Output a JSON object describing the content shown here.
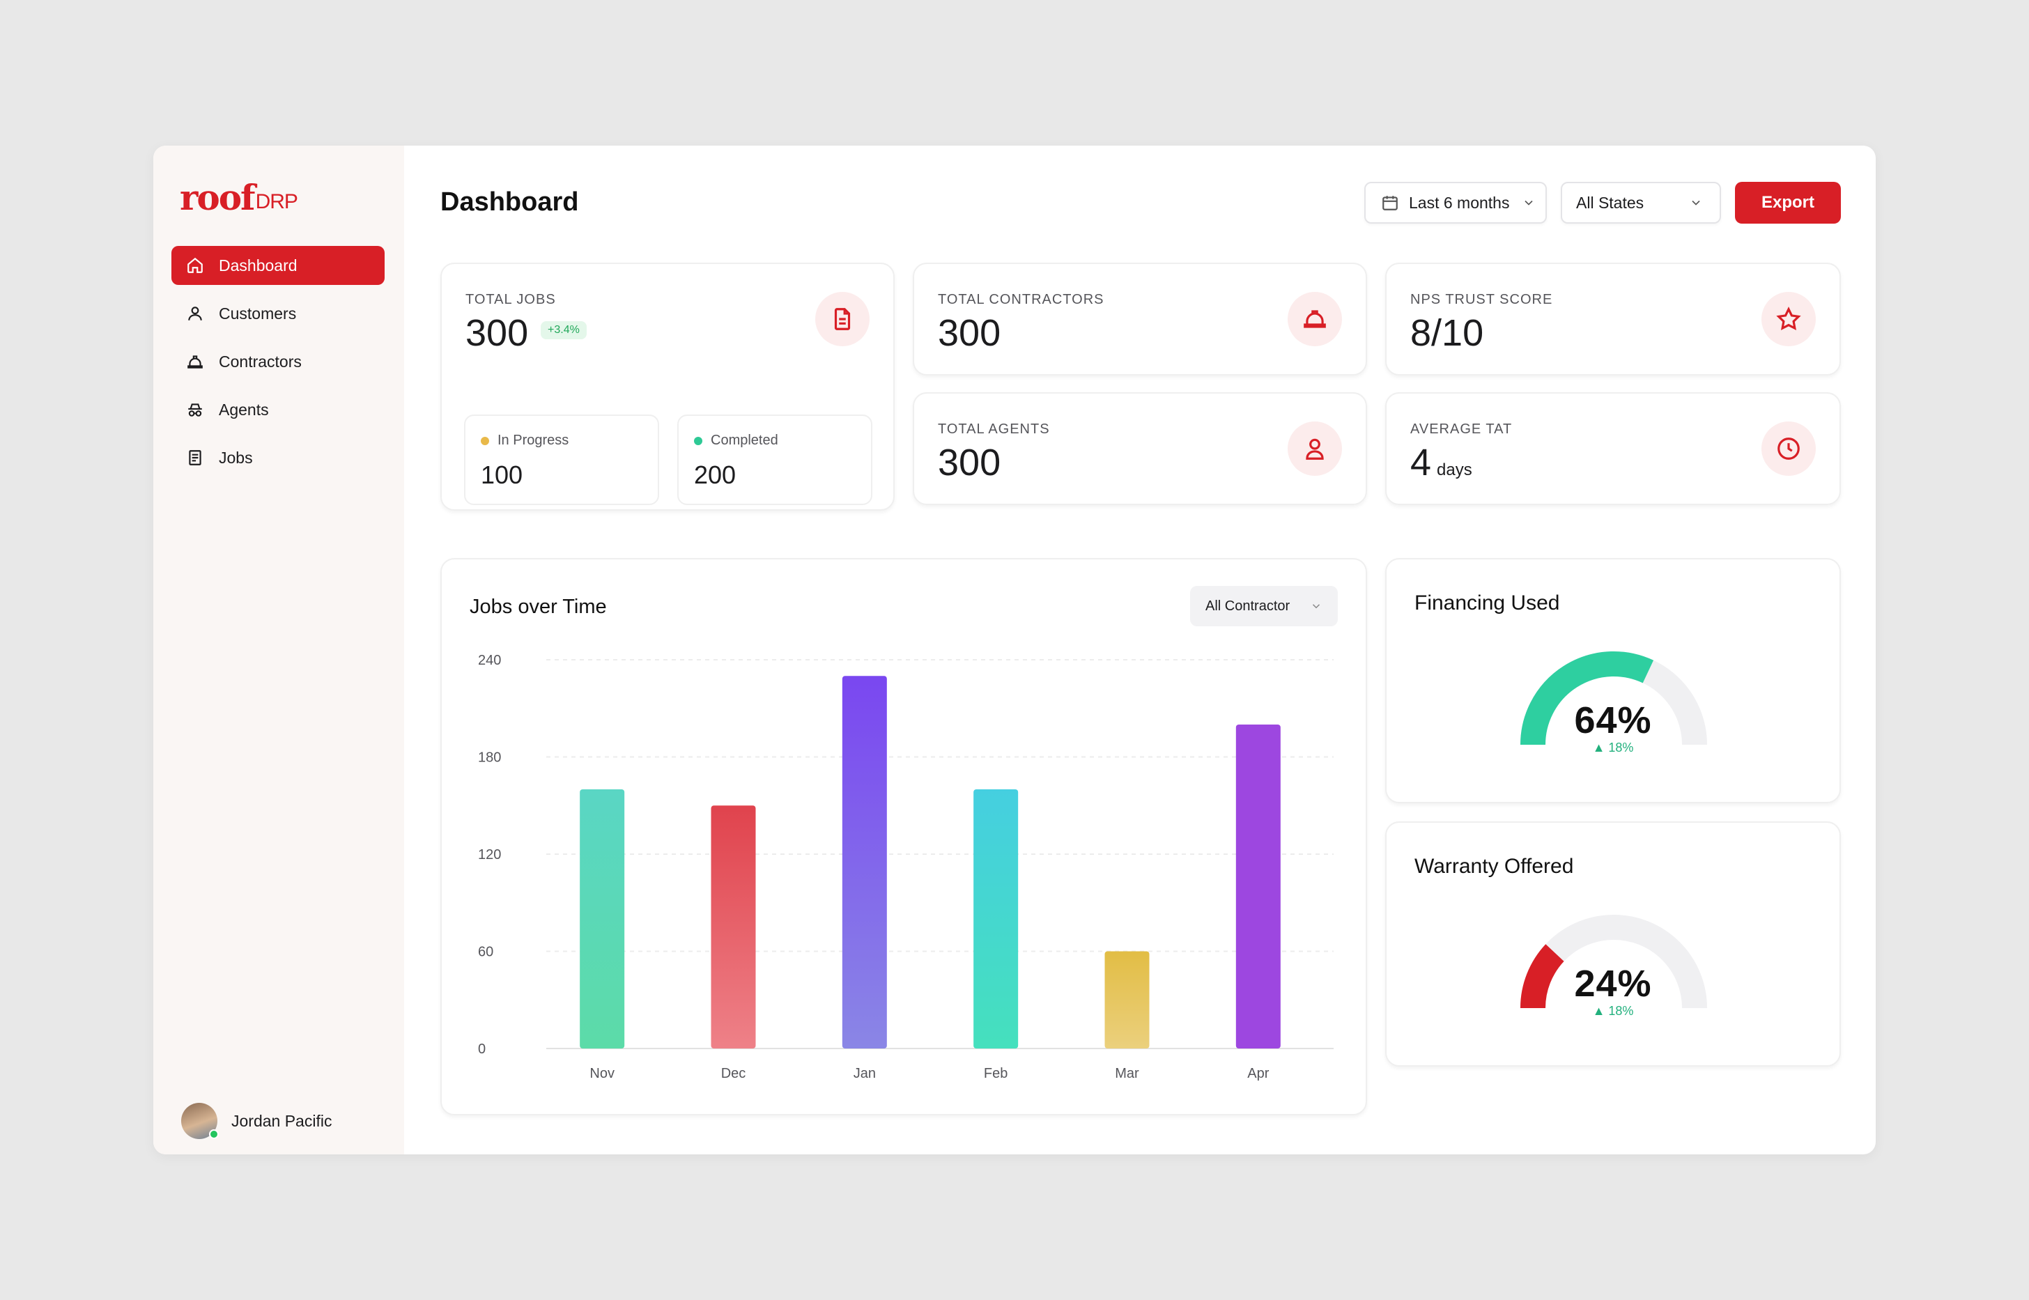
{
  "brand": {
    "logo_main": "roof",
    "logo_sub": "DRP",
    "accent": "#d81f26"
  },
  "sidebar": {
    "items": [
      {
        "label": "Dashboard",
        "icon": "home-icon",
        "active": true
      },
      {
        "label": "Customers",
        "icon": "user-icon",
        "active": false
      },
      {
        "label": "Contractors",
        "icon": "hardhat-icon",
        "active": false
      },
      {
        "label": "Agents",
        "icon": "spy-icon",
        "active": false
      },
      {
        "label": "Jobs",
        "icon": "document-icon",
        "active": false
      }
    ],
    "user": {
      "name": "Jordan Pacific",
      "status": "online"
    }
  },
  "header": {
    "title": "Dashboard",
    "range_filter": "Last 6 months",
    "state_filter": "All States",
    "export_label": "Export"
  },
  "stats": {
    "total_jobs": {
      "label": "TOTAL JOBS",
      "value": "300",
      "delta": "+3.4%",
      "in_progress": {
        "label": "In Progress",
        "value": "100",
        "color": "#e9b949"
      },
      "completed": {
        "label": "Completed",
        "value": "200",
        "color": "#2ec995"
      }
    },
    "total_contractors": {
      "label": "TOTAL CONTRACTORS",
      "value": "300"
    },
    "nps": {
      "label": "NPS TRUST SCORE",
      "value": "8/10"
    },
    "total_agents": {
      "label": "TOTAL AGENTS",
      "value": "300"
    },
    "tat": {
      "label": "AVERAGE TAT",
      "value": "4",
      "unit": "days"
    }
  },
  "jobs_chart": {
    "title": "Jobs over Time",
    "filter": "All Contractor"
  },
  "chart_data": {
    "type": "bar",
    "title": "Jobs over Time",
    "categories": [
      "Nov",
      "Dec",
      "Jan",
      "Feb",
      "Mar",
      "Apr"
    ],
    "values": [
      160,
      150,
      230,
      160,
      60,
      200
    ],
    "yticks": [
      0,
      60,
      120,
      180,
      240
    ],
    "ylim": [
      0,
      240
    ],
    "xlabel": "",
    "ylabel": "",
    "colors": [
      [
        "#5ad6c4",
        "#5cdba8"
      ],
      [
        "#e0434d",
        "#ee8188"
      ],
      [
        "#7a47f0",
        "#8a86e6"
      ],
      [
        "#45cfe0",
        "#45e0bd"
      ],
      [
        "#e2bd45",
        "#ebd07d"
      ],
      [
        "#9d47e0",
        "#9d47e0"
      ]
    ]
  },
  "gauges": {
    "financing": {
      "title": "Financing Used",
      "value_label": "64%",
      "value": 0.64,
      "delta": "18%",
      "color": "#2ecfa0"
    },
    "warranty": {
      "title": "Warranty Offered",
      "value_label": "24%",
      "value": 0.24,
      "delta": "18%",
      "color": "#d81f26"
    }
  }
}
